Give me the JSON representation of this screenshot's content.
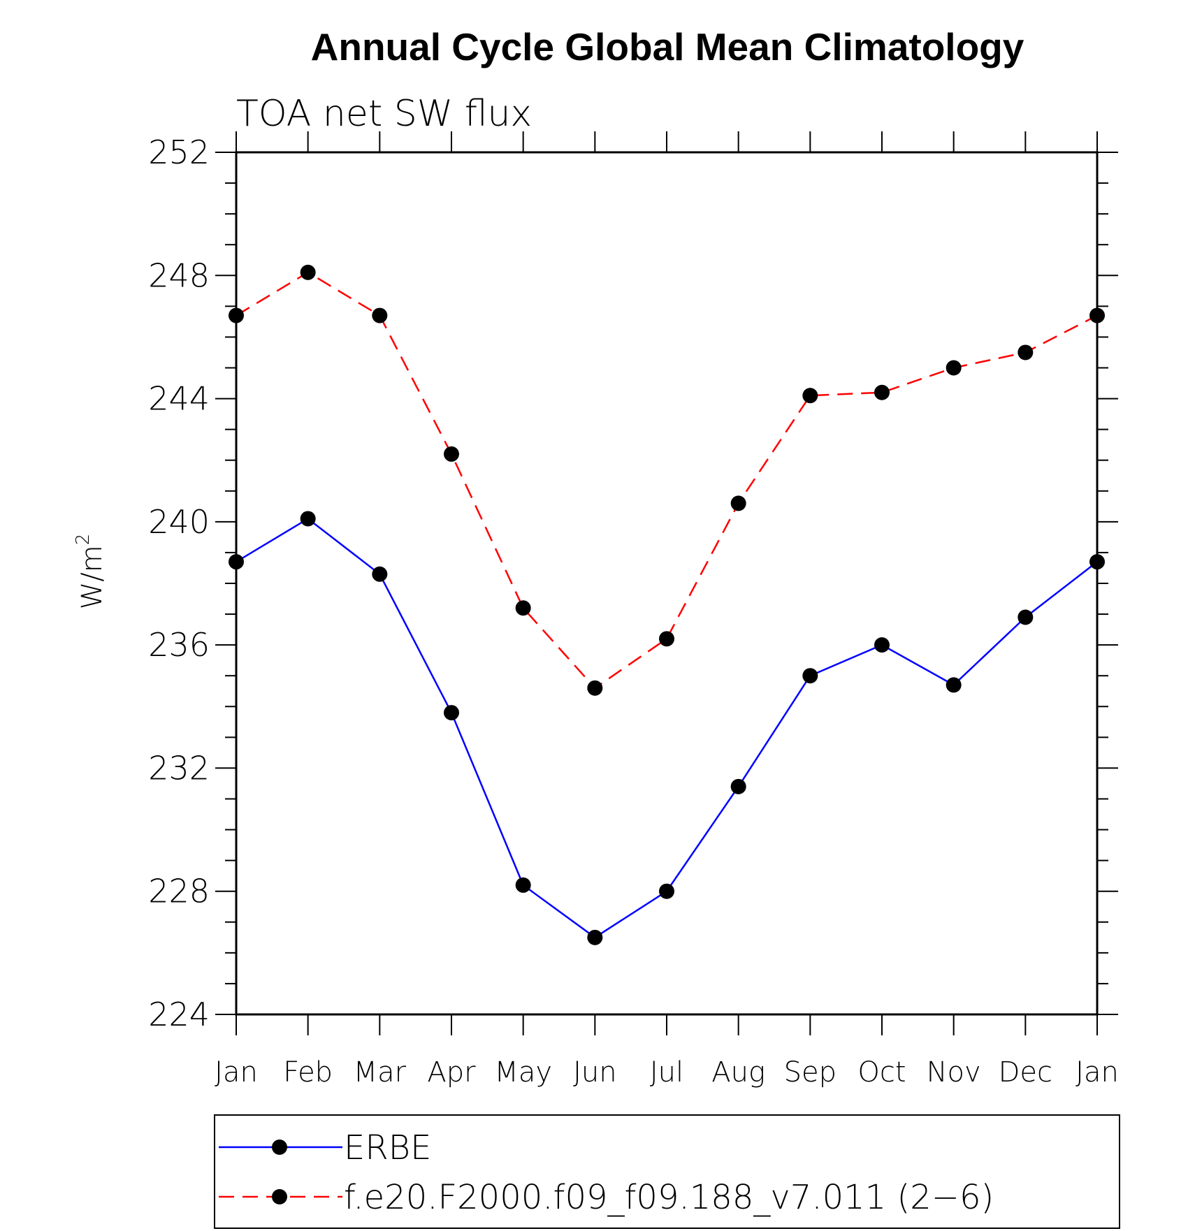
{
  "chart_data": {
    "type": "line",
    "title": "Annual Cycle Global Mean Climatology",
    "subtitle": "TOA net SW flux",
    "ylabel": "W/m",
    "ylabel_superscript": "2",
    "xlabel": "",
    "categories": [
      "Jan",
      "Feb",
      "Mar",
      "Apr",
      "May",
      "Jun",
      "Jul",
      "Aug",
      "Sep",
      "Oct",
      "Nov",
      "Dec",
      "Jan"
    ],
    "ylim": [
      224,
      252
    ],
    "yticks": [
      "224",
      "228",
      "232",
      "236",
      "240",
      "244",
      "248",
      "252"
    ],
    "grid": false,
    "legend_position": "bottom",
    "series": [
      {
        "name": "ERBE",
        "color": "#0000ff",
        "style": "solid",
        "values": [
          238.7,
          240.1,
          238.3,
          233.8,
          228.2,
          226.5,
          228.0,
          231.4,
          235.0,
          236.0,
          234.7,
          236.9,
          238.7
        ]
      },
      {
        "name": "f.e20.F2000.f09_f09.188_v7.011 (2−6)",
        "color": "#ff0000",
        "style": "dashed",
        "values": [
          246.7,
          248.1,
          246.7,
          242.2,
          237.2,
          234.6,
          236.2,
          240.6,
          244.1,
          244.2,
          245.0,
          245.5,
          246.7
        ]
      }
    ]
  }
}
